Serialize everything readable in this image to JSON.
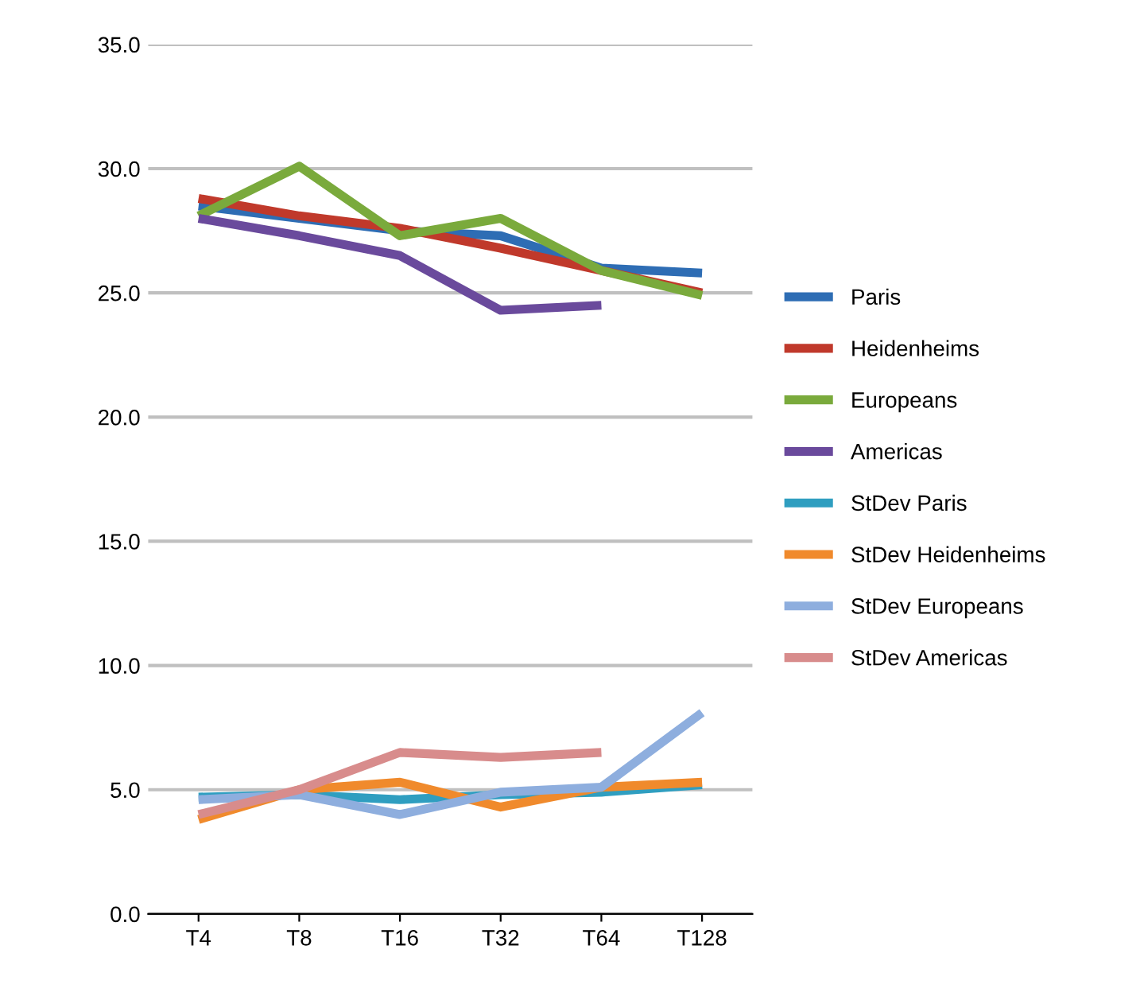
{
  "chart_data": {
    "type": "line",
    "categories": [
      "T4",
      "T8",
      "T16",
      "T32",
      "T64",
      "T128"
    ],
    "series": [
      {
        "name": "Paris",
        "color": "#2e6db4",
        "values": [
          28.5,
          28.0,
          27.5,
          27.3,
          26.0,
          25.8
        ]
      },
      {
        "name": "Heidenheims",
        "color": "#c0392b",
        "values": [
          28.8,
          28.1,
          27.6,
          26.8,
          25.9,
          25.0
        ]
      },
      {
        "name": "Europeans",
        "color": "#7aaa3c",
        "values": [
          28.1,
          30.1,
          27.3,
          28.0,
          25.9,
          24.9
        ]
      },
      {
        "name": "Americas",
        "color": "#6a4a9c",
        "values": [
          28.0,
          27.3,
          26.5,
          24.3,
          24.5,
          null
        ]
      },
      {
        "name": "StDev Paris",
        "color": "#2f9ec0",
        "values": [
          4.7,
          4.8,
          4.6,
          4.8,
          4.9,
          5.2
        ]
      },
      {
        "name": "StDev Heidenheims",
        "color": "#f08a2c",
        "values": [
          3.8,
          5.0,
          5.3,
          4.3,
          5.1,
          5.3
        ]
      },
      {
        "name": "StDev Europeans",
        "color": "#8eaede",
        "values": [
          4.6,
          4.8,
          4.0,
          4.9,
          5.1,
          8.1
        ]
      },
      {
        "name": "StDev Americas",
        "color": "#d88c8c",
        "values": [
          4.0,
          5.0,
          6.5,
          6.3,
          6.5,
          null
        ]
      }
    ],
    "ylim": [
      0,
      35
    ],
    "yticks": [
      {
        "value": 0,
        "label": "0.0"
      },
      {
        "value": 5,
        "label": "5.0"
      },
      {
        "value": 10,
        "label": "10.0"
      },
      {
        "value": 15,
        "label": "15.0"
      },
      {
        "value": 20,
        "label": "20.0"
      },
      {
        "value": 25,
        "label": "25.0"
      },
      {
        "value": 30,
        "label": "30.0"
      },
      {
        "value": 35,
        "label": "35.0"
      }
    ],
    "grid": "y",
    "legend": "right",
    "marker": "none",
    "line_style": "solid"
  }
}
